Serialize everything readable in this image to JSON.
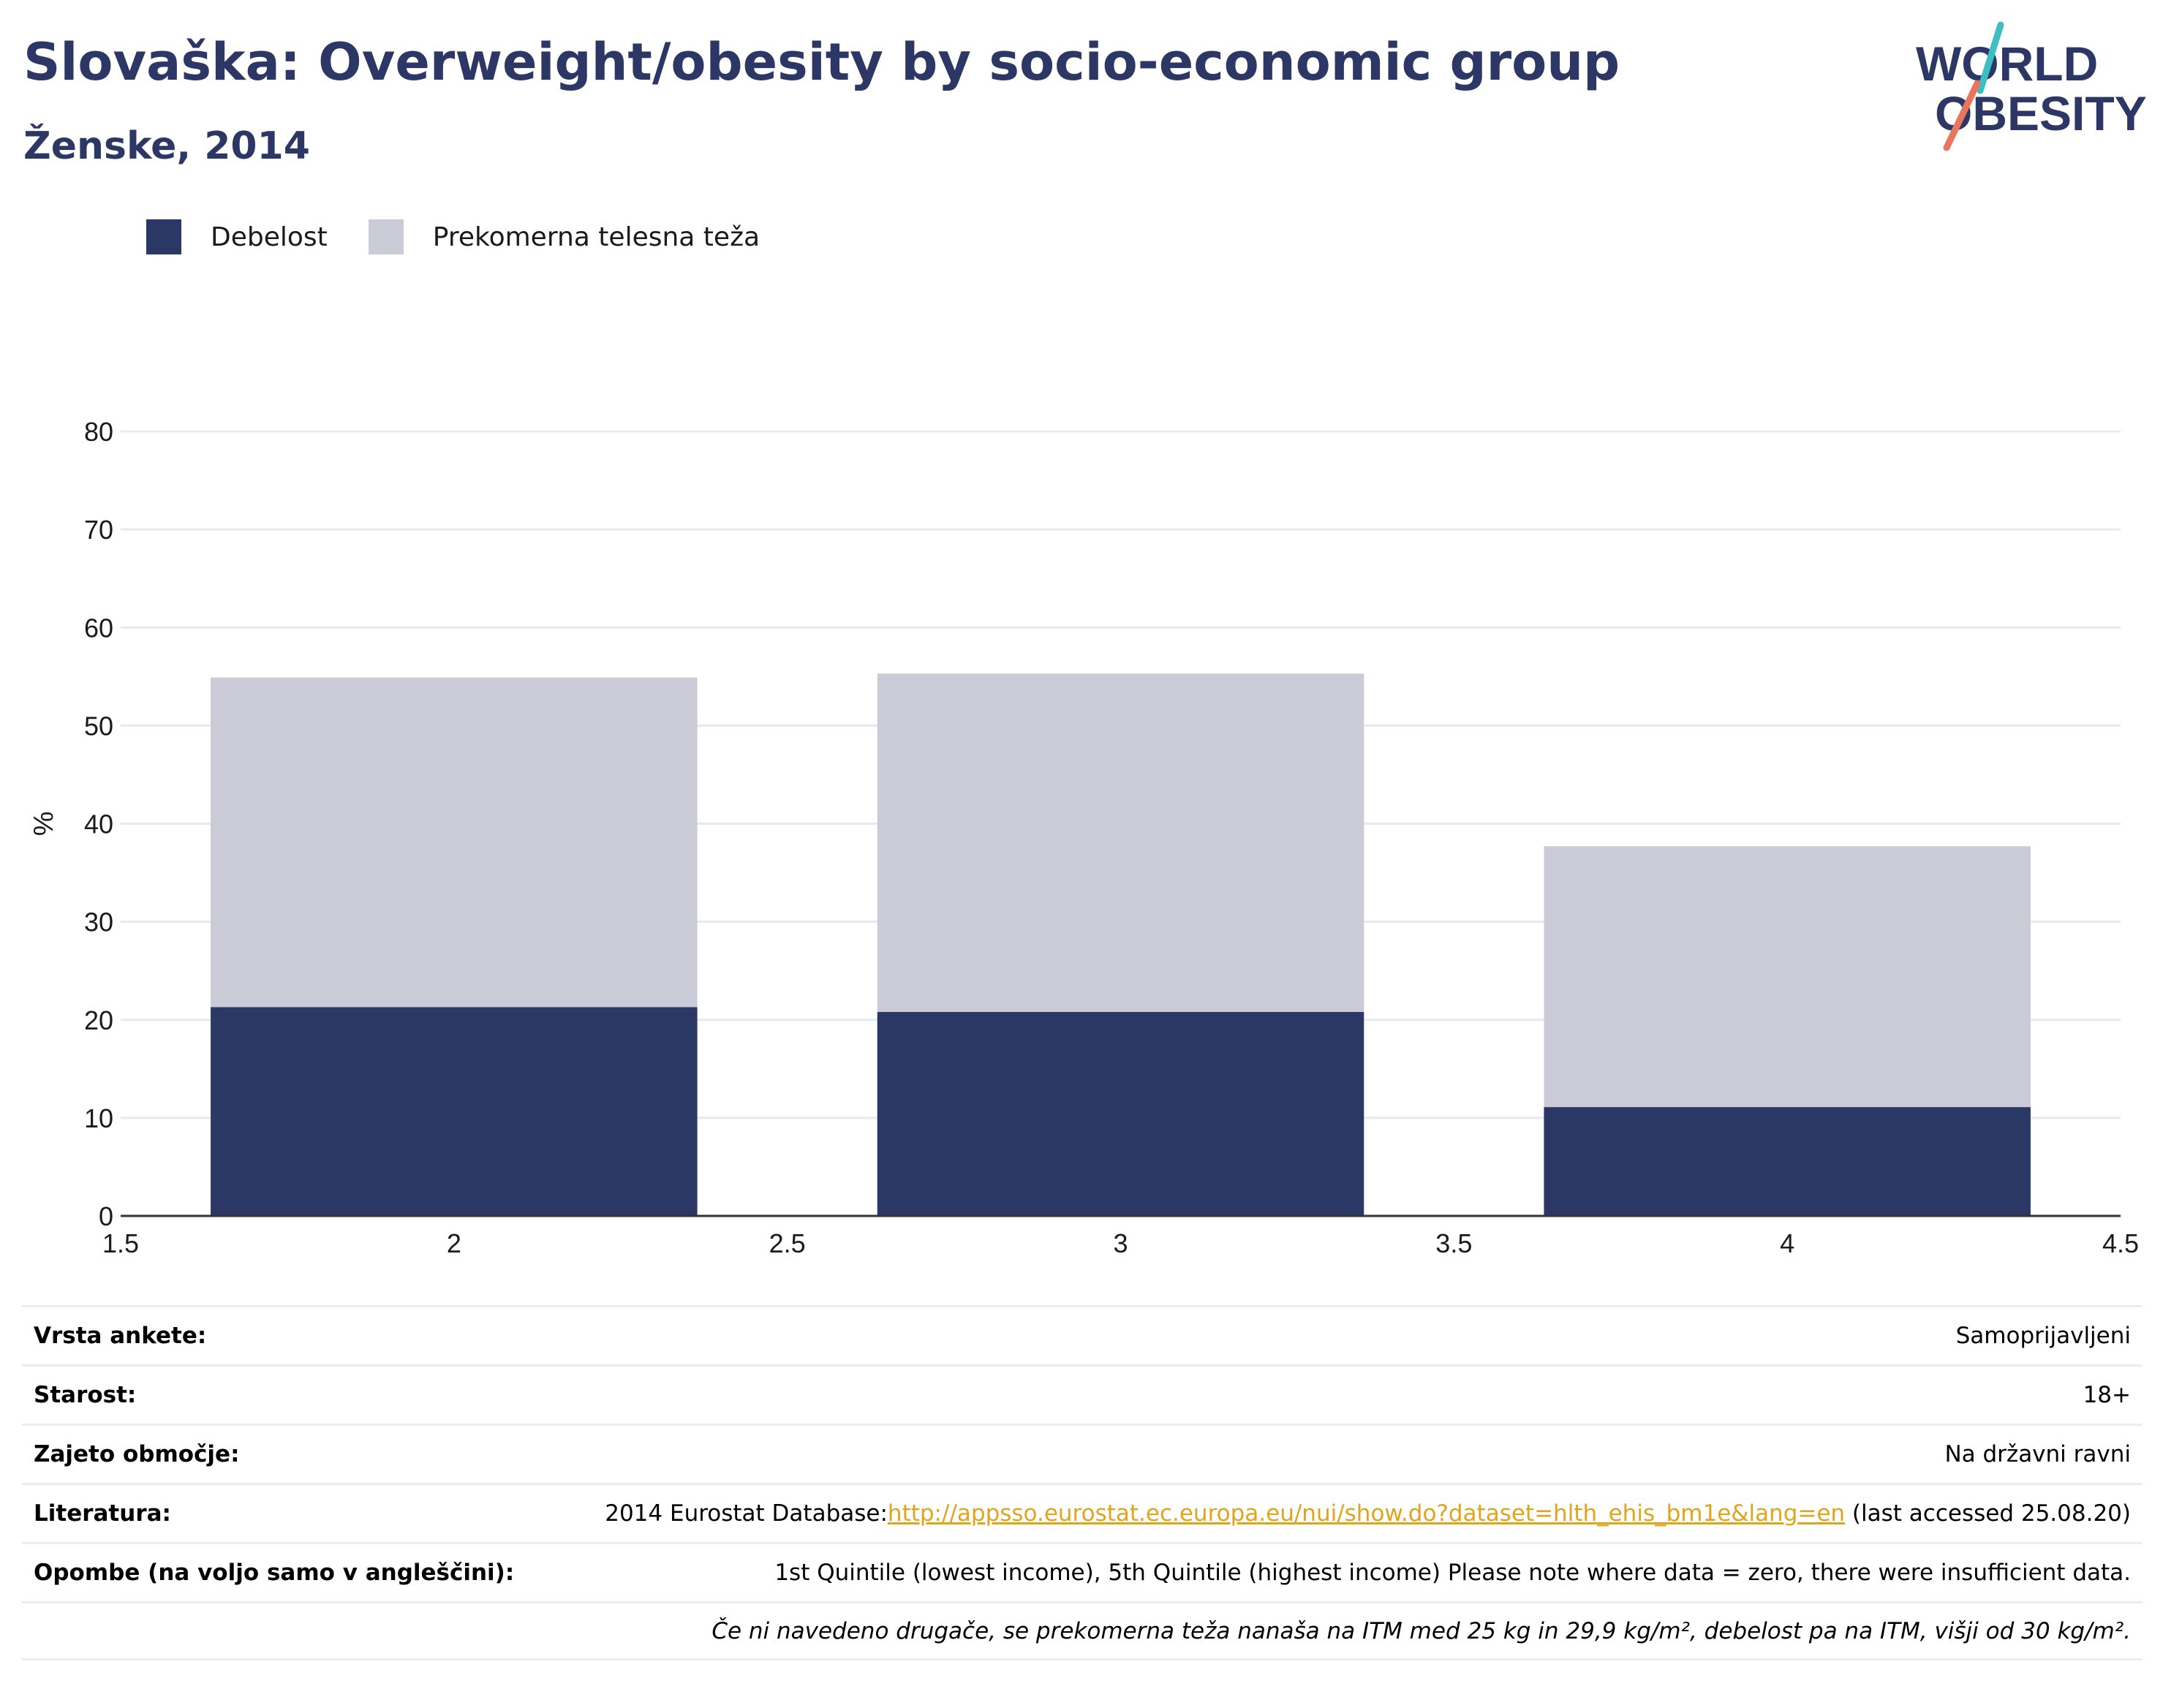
{
  "header": {
    "title": "Slovaška: Overweight/obesity by socio-economic group",
    "subtitle": "Ženske, 2014",
    "logo_top": "WORLD",
    "logo_bottom": "OBESITY"
  },
  "colors": {
    "debelost": "#2b3765",
    "prekomerna": "#cacbd7",
    "title": "#2d3766",
    "link": "#e0a51c",
    "logo_teal": "#3dbdc4",
    "logo_coral": "#e8765f"
  },
  "chart_data": {
    "type": "bar",
    "stacked": true,
    "title": "Slovaška: Overweight/obesity by socio-economic group",
    "subtitle": "Ženske, 2014",
    "xlabel": "",
    "ylabel": "%",
    "x": [
      2,
      3,
      4
    ],
    "xlim": [
      1.5,
      4.5
    ],
    "ylim": [
      0,
      80
    ],
    "xticks": [
      "1.5",
      "2",
      "2.5",
      "3",
      "3.5",
      "4",
      "4.5"
    ],
    "yticks": [
      "0",
      "10",
      "20",
      "30",
      "40",
      "50",
      "60",
      "70",
      "80"
    ],
    "grid": true,
    "legend_position": "top-left",
    "series": [
      {
        "name": "Debelost",
        "values": [
          21.3,
          20.8,
          11.1
        ]
      },
      {
        "name": "Prekomerna telesna teža",
        "values": [
          33.6,
          34.5,
          26.6
        ]
      }
    ]
  },
  "info": {
    "rows": [
      {
        "label": "Vrsta ankete:",
        "value": "Samoprijavljeni"
      },
      {
        "label": "Starost:",
        "value": "18+"
      },
      {
        "label": "Zajeto območje:",
        "value": "Na državni ravni"
      },
      {
        "label": "Literatura:",
        "value_prefix": "2014 Eurostat Database:",
        "link": "http://appsso.eurostat.ec.europa.eu/nui/show.do?dataset=hlth_ehis_bm1e&lang=en",
        "value_suffix": " (last accessed 25.08.20)"
      },
      {
        "label": "Opombe (na voljo samo v angleščini):",
        "value": "1st Quintile (lowest income), 5th Quintile (highest income) Please note where data = zero, there were insufficient data."
      }
    ],
    "footnote": "Če ni navedeno drugače, se prekomerna teža nanaša na ITM med 25 kg in 29,9 kg/m², debelost pa na ITM, višji od 30 kg/m²."
  }
}
